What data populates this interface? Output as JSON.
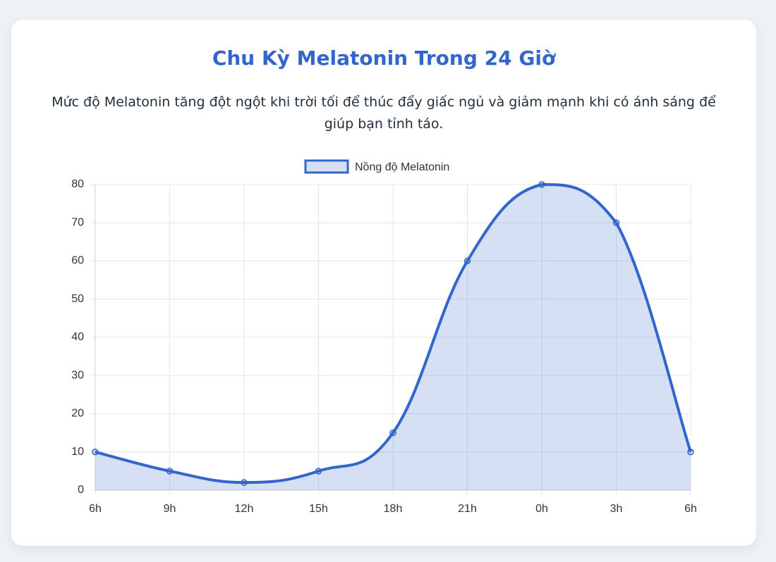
{
  "chart_data": {
    "type": "line",
    "title": "Chu Kỳ Melatonin Trong 24 Giờ",
    "subtitle": "Mức độ Melatonin tăng đột ngột khi trời tối để thúc đẩy giấc ngủ và giảm mạnh khi có ánh sáng để giúp bạn tỉnh táo.",
    "categories": [
      "6h",
      "9h",
      "12h",
      "15h",
      "18h",
      "21h",
      "0h",
      "3h",
      "6h"
    ],
    "series": [
      {
        "name": "Nồng độ Melatonin",
        "color": "#3366cc",
        "fill": "rgba(51,102,204,0.2)",
        "values": [
          10,
          5,
          2,
          5,
          15,
          60,
          80,
          70,
          10
        ]
      }
    ],
    "ylim": [
      0,
      80
    ],
    "yticks": [
      0,
      10,
      20,
      30,
      40,
      50,
      60,
      70,
      80
    ],
    "grid": true,
    "legend": "top"
  }
}
